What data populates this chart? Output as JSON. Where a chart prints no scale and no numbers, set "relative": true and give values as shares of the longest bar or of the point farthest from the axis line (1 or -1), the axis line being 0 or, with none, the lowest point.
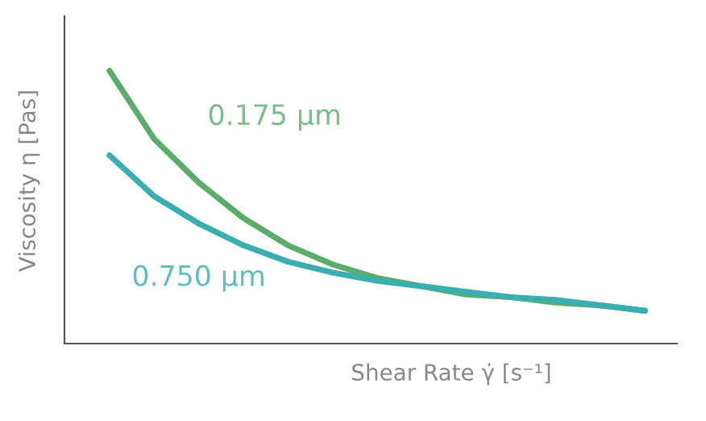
{
  "chart_data": {
    "type": "line",
    "relative": true,
    "xlabel": "Shear Rate γ̇ [s⁻¹]",
    "ylabel": "Viscosity η [Pas]",
    "categories": [
      null,
      null,
      null,
      null,
      null,
      null,
      null,
      null,
      null,
      null,
      null,
      null,
      null
    ],
    "series": [
      {
        "name": "0.175 µm",
        "color": "#5aae6a",
        "values": [
          1,
          0.75,
          0.59,
          0.46,
          0.36,
          0.29,
          0.24,
          0.21,
          0.18,
          0.17,
          0.15,
          0.14,
          0.12
        ]
      },
      {
        "name": "0.750 µm",
        "color": "#3aaeb0",
        "values": [
          0.69,
          0.54,
          0.44,
          0.36,
          0.3,
          0.26,
          0.23,
          0.21,
          0.19,
          0.17,
          0.16,
          0.14,
          0.12
        ]
      }
    ],
    "legend": false,
    "marker": "none",
    "line_style": "solid"
  }
}
